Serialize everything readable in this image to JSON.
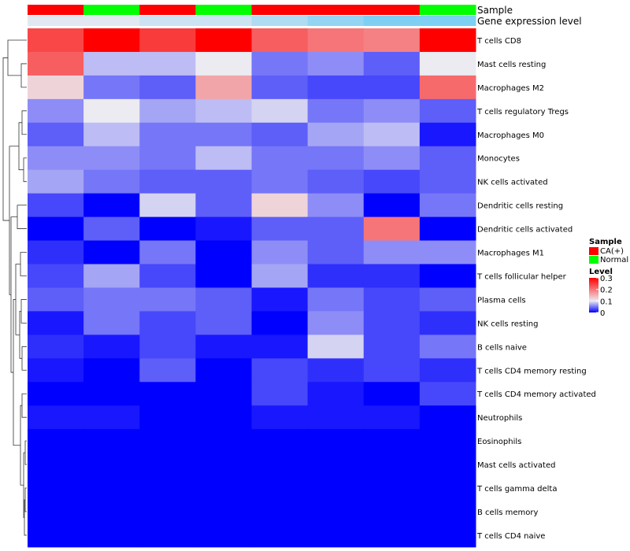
{
  "chart_data": {
    "type": "heatmap",
    "title": "",
    "annotation_labels": [
      "Sample",
      "Gene expression level"
    ],
    "sample_groups": [
      "CA(+)",
      "Normal",
      "CA(+)",
      "Normal",
      "CA(+)",
      "CA(+)",
      "CA(+)",
      "Normal"
    ],
    "sample_expression_levels": [
      0.02,
      0.02,
      0.06,
      0.06,
      0.11,
      0.16,
      0.2,
      0.2
    ],
    "rows": [
      "T cells CD8",
      "Mast cells resting",
      "Macrophages M2",
      "T cells regulatory  Tregs",
      "Macrophages M0",
      "Monocytes",
      "NK cells activated",
      "Dendritic cells resting",
      "Dendritic cells activated",
      "Macrophages M1",
      "T cells follicular helper",
      "Plasma cells",
      "NK cells resting",
      "B cells naive",
      "T cells CD4 memory resting",
      "T cells CD4 memory activated",
      "Neutrophils",
      "Eosinophils",
      "Mast cells activated",
      "T cells gamma delta",
      "B cells memory",
      "T cells CD4 naive"
    ],
    "values": [
      [
        0.24,
        0.3,
        0.25,
        0.3,
        0.22,
        0.2,
        0.19,
        0.3
      ],
      [
        0.22,
        0.08,
        0.08,
        0.1,
        0.05,
        0.06,
        0.04,
        0.1
      ],
      [
        0.12,
        0.05,
        0.04,
        0.16,
        0.04,
        0.03,
        0.03,
        0.21
      ],
      [
        0.06,
        0.1,
        0.07,
        0.08,
        0.09,
        0.05,
        0.06,
        0.04
      ],
      [
        0.04,
        0.08,
        0.05,
        0.05,
        0.04,
        0.07,
        0.08,
        0.01
      ],
      [
        0.06,
        0.06,
        0.05,
        0.08,
        0.05,
        0.05,
        0.06,
        0.04
      ],
      [
        0.07,
        0.05,
        0.04,
        0.04,
        0.05,
        0.04,
        0.03,
        0.04
      ],
      [
        0.03,
        0.0,
        0.09,
        0.04,
        0.12,
        0.06,
        0.0,
        0.05
      ],
      [
        0.0,
        0.04,
        0.0,
        0.01,
        0.04,
        0.04,
        0.2,
        0.0
      ],
      [
        0.02,
        0.0,
        0.05,
        0.0,
        0.06,
        0.04,
        0.06,
        0.06
      ],
      [
        0.03,
        0.07,
        0.03,
        0.0,
        0.07,
        0.02,
        0.02,
        0.0
      ],
      [
        0.04,
        0.05,
        0.05,
        0.04,
        0.01,
        0.05,
        0.03,
        0.04
      ],
      [
        0.01,
        0.05,
        0.03,
        0.04,
        0.0,
        0.06,
        0.03,
        0.02
      ],
      [
        0.02,
        0.01,
        0.03,
        0.01,
        0.01,
        0.09,
        0.03,
        0.05
      ],
      [
        0.01,
        0.0,
        0.04,
        0.0,
        0.03,
        0.02,
        0.03,
        0.02
      ],
      [
        0.0,
        0.0,
        0.0,
        0.0,
        0.03,
        0.01,
        0.0,
        0.03
      ],
      [
        0.01,
        0.01,
        0.0,
        0.0,
        0.01,
        0.01,
        0.01,
        0.0
      ],
      [
        0.0,
        0.0,
        0.0,
        0.0,
        0.0,
        0.0,
        0.0,
        0.0
      ],
      [
        0.0,
        0.0,
        0.0,
        0.0,
        0.0,
        0.0,
        0.0,
        0.0
      ],
      [
        0.0,
        0.0,
        0.0,
        0.0,
        0.0,
        0.0,
        0.0,
        0.0
      ],
      [
        0.0,
        0.0,
        0.0,
        0.0,
        0.0,
        0.0,
        0.0,
        0.0
      ],
      [
        0.0,
        0.0,
        0.0,
        0.0,
        0.0,
        0.0,
        0.0,
        0.0
      ]
    ],
    "color_scale": {
      "min": 0,
      "mid": 0.1,
      "max": 0.3,
      "low_color": "#0000ff",
      "mid_color": "#ecebf1",
      "high_color": "#ff0000"
    },
    "annotation_colors": {
      "CA(+)": "#ff0000",
      "Normal": "#00ff00"
    },
    "expression_annotation_colors": {
      "low": "#ecebf1",
      "high": "#7dd0f3"
    },
    "legend": {
      "sample_title": "Sample",
      "sample_entries": [
        "CA(+)",
        "Normal"
      ],
      "level_title": "Level",
      "level_ticks": [
        "0.3",
        "0.2",
        "0.1",
        "0"
      ],
      "level_tick_values": [
        0.3,
        0.2,
        0.1,
        0
      ],
      "position": "right"
    },
    "dendrogram": "row dendrogram on left"
  }
}
